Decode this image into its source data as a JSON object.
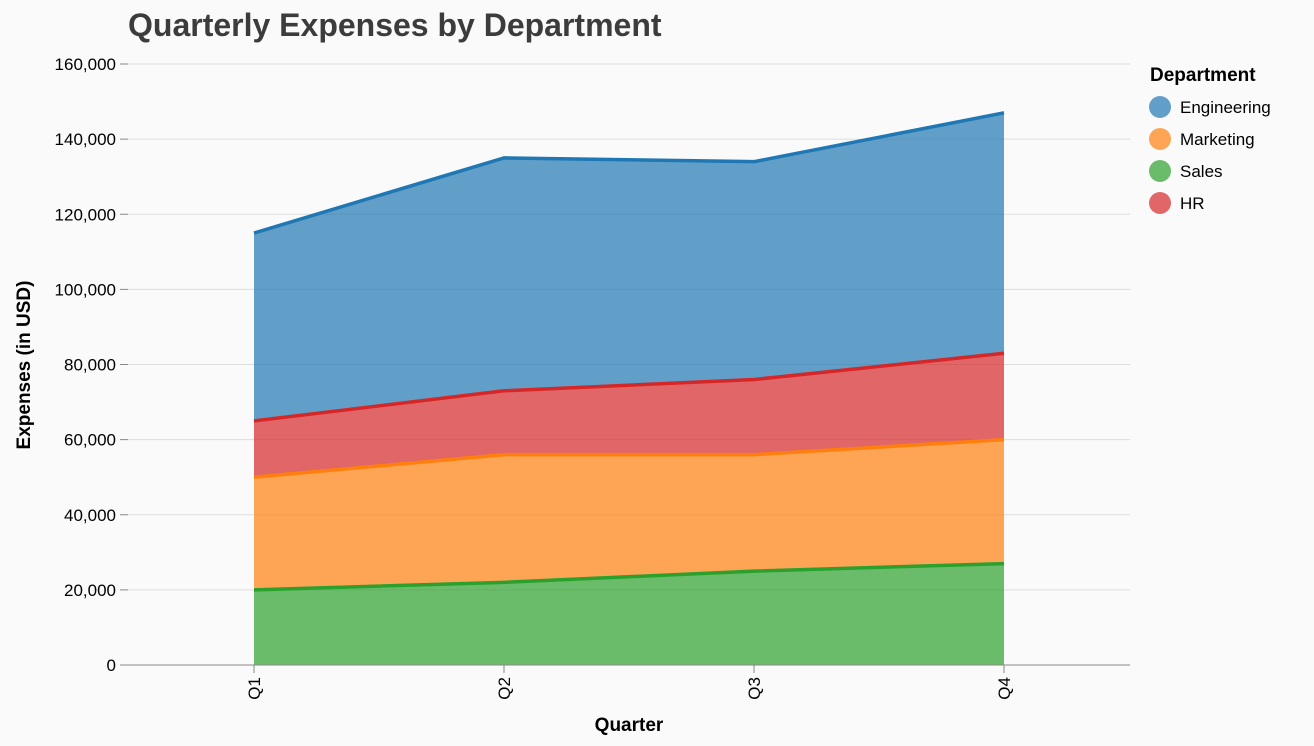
{
  "chart_data": {
    "type": "area",
    "stacked": true,
    "title": "Quarterly Expenses by Department",
    "xlabel": "Quarter",
    "ylabel": "Expenses (in USD)",
    "categories": [
      "Q1",
      "Q2",
      "Q3",
      "Q4"
    ],
    "ylim": [
      0,
      160000
    ],
    "yticks": [
      0,
      20000,
      40000,
      60000,
      80000,
      100000,
      120000,
      140000,
      160000
    ],
    "ytick_labels": [
      "0",
      "20,000",
      "40,000",
      "60,000",
      "80,000",
      "100,000",
      "120,000",
      "140,000",
      "160,000"
    ],
    "grid": true,
    "legend": {
      "title": "Department",
      "placement": "right",
      "order": [
        "Engineering",
        "Marketing",
        "Sales",
        "HR"
      ]
    },
    "stack_order": [
      "Sales",
      "Marketing",
      "HR",
      "Engineering"
    ],
    "series": [
      {
        "name": "Engineering",
        "color": "#1f77b4",
        "values": [
          50000,
          62000,
          58000,
          64000
        ]
      },
      {
        "name": "Marketing",
        "color": "#ff7f0e",
        "values": [
          30000,
          34000,
          31000,
          33000
        ]
      },
      {
        "name": "Sales",
        "color": "#2ca02c",
        "values": [
          20000,
          22000,
          25000,
          27000
        ]
      },
      {
        "name": "HR",
        "color": "#d62728",
        "values": [
          15000,
          17000,
          20000,
          23000
        ]
      }
    ]
  }
}
